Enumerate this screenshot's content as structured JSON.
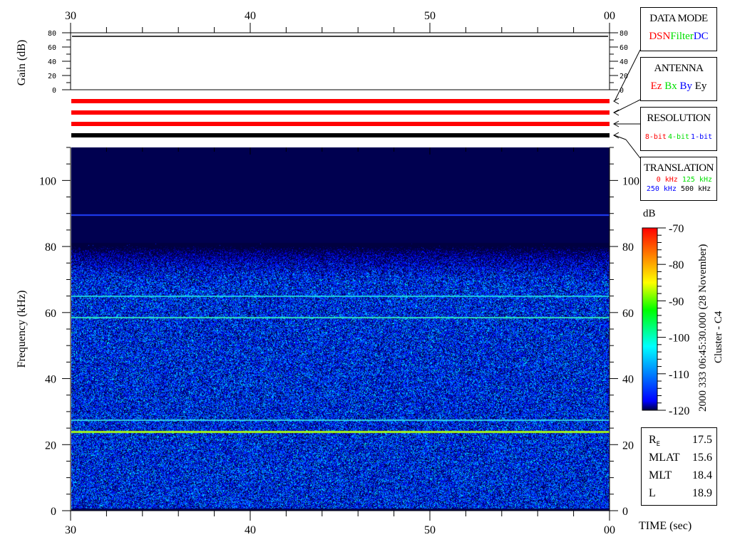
{
  "chart_data": {
    "type": "heatmap",
    "title": "",
    "xlabel": "TIME (sec)",
    "ylabel": "Frequency (kHz)",
    "x_tick_labels": [
      "30",
      "40",
      "50",
      "00"
    ],
    "x_range_sec": [
      30,
      60
    ],
    "y_ticks": [
      0,
      20,
      40,
      60,
      80,
      100
    ],
    "y_range": [
      0,
      110
    ],
    "background_color": "#000050",
    "noise_upper_freq_khz": 81,
    "spectral_lines": [
      {
        "freq_khz": 89.5,
        "level_db": -112,
        "color": "#2040ff"
      },
      {
        "freq_khz": 65,
        "level_db": -107,
        "color": "#20d0e0"
      },
      {
        "freq_khz": 58.5,
        "level_db": -105,
        "color": "#30e0c0"
      },
      {
        "freq_khz": 27.5,
        "level_db": -106,
        "color": "#30d0e0"
      },
      {
        "freq_khz": 24,
        "level_db": -88,
        "color": "#a0f020"
      }
    ],
    "colorbar": {
      "label": "dB",
      "range": [
        -120,
        -70
      ],
      "ticks": [
        "-70",
        "-80",
        "-90",
        "-100",
        "-110",
        "-120"
      ],
      "colors": [
        "#000040",
        "#0000ff",
        "#00ffff",
        "#00ff00",
        "#ffff00",
        "#ff8000",
        "#ff0000"
      ]
    },
    "gain_panel": {
      "ylabel": "Gain (dB)",
      "ticks": [
        "80",
        "60",
        "40",
        "20",
        "0"
      ],
      "range": [
        0,
        80
      ],
      "gain_value_db": 75
    },
    "mode_bars": [
      {
        "panel": "DATA MODE",
        "color": "#ff0000"
      },
      {
        "panel": "ANTENNA",
        "color": "#ff0000"
      },
      {
        "panel": "RESOLUTION",
        "color": "#ff0000"
      },
      {
        "panel": "TRANSLATION",
        "color": "#000000"
      }
    ]
  },
  "legend_boxes": {
    "data_mode": {
      "title": "DATA MODE",
      "items": [
        {
          "text": "DSN",
          "color": "#ff0000"
        },
        {
          "text": "Filter",
          "color": "#00e000"
        },
        {
          "text": "DC",
          "color": "#0000ff"
        }
      ]
    },
    "antenna": {
      "title": "ANTENNA",
      "items": [
        {
          "text": "Ez",
          "color": "#ff0000"
        },
        {
          "text": "Bx",
          "color": "#00e000"
        },
        {
          "text": "By",
          "color": "#0000ff"
        },
        {
          "text": "Ey",
          "color": "#000000"
        }
      ]
    },
    "resolution": {
      "title": "RESOLUTION",
      "items": [
        {
          "text": "8-bit",
          "color": "#ff0000"
        },
        {
          "text": "4-bit",
          "color": "#00e000"
        },
        {
          "text": "1-bit",
          "color": "#0000ff"
        }
      ]
    },
    "translation": {
      "title": "TRANSLATION",
      "items": [
        {
          "text": "0 kHz",
          "color": "#ff0000"
        },
        {
          "text": "125 kHz",
          "color": "#00e000"
        },
        {
          "text": "250 kHz",
          "color": "#0000ff"
        },
        {
          "text": "500 kHz",
          "color": "#000000"
        }
      ]
    }
  },
  "side_title": {
    "date_line": "2000 333 06:45:30.000 (28 November)",
    "spacecraft": "Cluster - C4"
  },
  "orbit_info": [
    {
      "label": "R",
      "sub": "E",
      "value": "17.5"
    },
    {
      "label": "MLAT",
      "sub": "",
      "value": "15.6"
    },
    {
      "label": "MLT",
      "sub": "",
      "value": "18.4"
    },
    {
      "label": "L",
      "sub": "",
      "value": "18.9"
    }
  ]
}
